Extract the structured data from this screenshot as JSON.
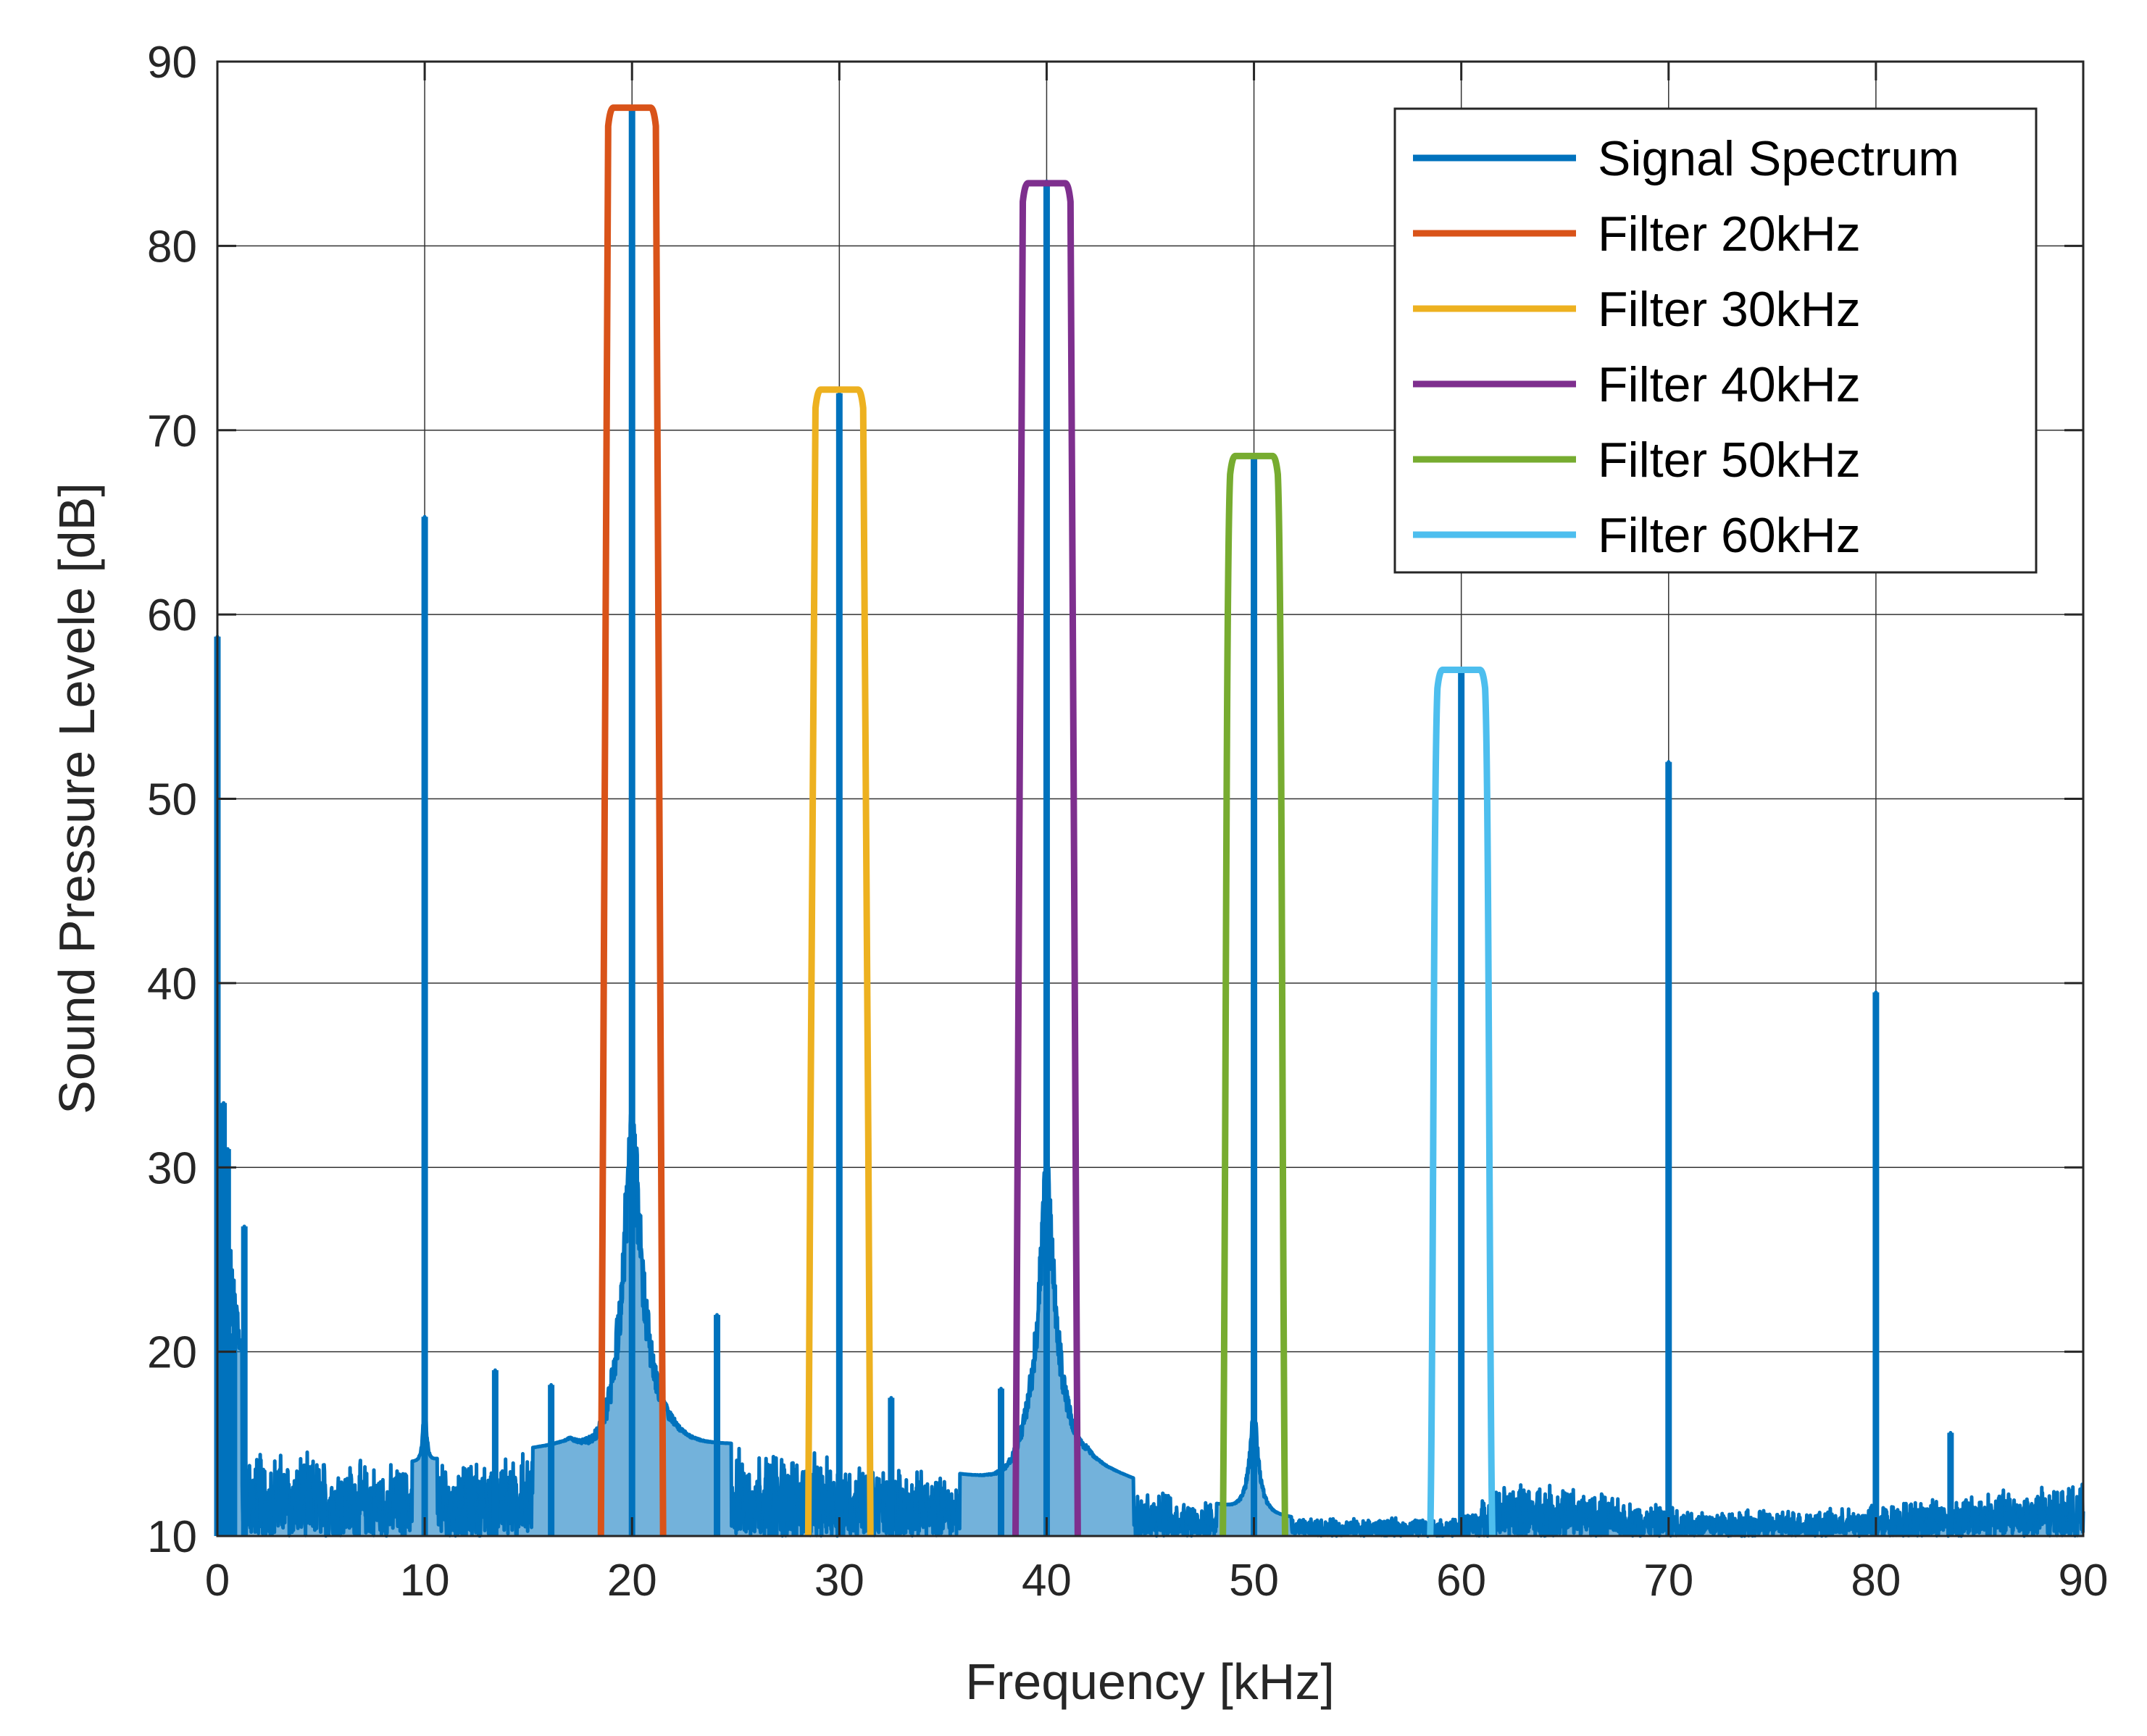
{
  "chart_data": {
    "type": "line",
    "title": "",
    "xlabel": "Frequency [kHz]",
    "ylabel": "Sound Pressure Levele [dB]",
    "xlim": [
      0,
      90
    ],
    "ylim": [
      10,
      90
    ],
    "xticks": [
      0,
      10,
      20,
      30,
      40,
      50,
      60,
      70,
      80,
      90
    ],
    "yticks": [
      10,
      20,
      30,
      40,
      50,
      60,
      70,
      80,
      90
    ],
    "grid": "partial",
    "legend_position": "top-right",
    "series": [
      {
        "name": "Signal Spectrum",
        "color": "#0072BD",
        "noise_floor": [
          [
            0,
            15
          ],
          [
            2,
            15
          ],
          [
            9,
            14
          ],
          [
            17,
            15
          ],
          [
            19,
            13
          ],
          [
            22,
            15
          ],
          [
            27,
            15
          ],
          [
            32,
            14
          ],
          [
            38,
            13
          ],
          [
            42,
            14
          ],
          [
            47,
            12
          ],
          [
            52,
            11
          ],
          [
            60,
            11
          ],
          [
            62,
            13
          ],
          [
            65,
            13
          ],
          [
            68,
            12
          ],
          [
            72,
            11.5
          ],
          [
            78,
            11.5
          ],
          [
            85,
            12.5
          ],
          [
            90,
            13
          ]
        ],
        "peaks": [
          {
            "x": 0,
            "y": 58.8
          },
          {
            "x": 0.3,
            "y": 33.5
          },
          {
            "x": 0.5,
            "y": 31
          },
          {
            "x": 0.8,
            "y": 21
          },
          {
            "x": 1.3,
            "y": 26.8
          },
          {
            "x": 10,
            "y": 65.3
          },
          {
            "x": 13.4,
            "y": 19
          },
          {
            "x": 16.1,
            "y": 18.2
          },
          {
            "x": 20,
            "y": 87.5
          },
          {
            "x": 24.1,
            "y": 22
          },
          {
            "x": 30,
            "y": 72
          },
          {
            "x": 32.5,
            "y": 17.5
          },
          {
            "x": 37.8,
            "y": 18
          },
          {
            "x": 40,
            "y": 83.5
          },
          {
            "x": 50,
            "y": 68.5
          },
          {
            "x": 60,
            "y": 57
          },
          {
            "x": 70,
            "y": 52
          },
          {
            "x": 80,
            "y": 39.5
          },
          {
            "x": 83.6,
            "y": 15.6
          }
        ]
      },
      {
        "name": "Filter 20kHz",
        "color": "#D95319",
        "center": 20,
        "half_width": 1.5,
        "level": 87.5
      },
      {
        "name": "Filter 30kHz",
        "color": "#EDB120",
        "center": 30,
        "half_width": 1.5,
        "level": 72.2
      },
      {
        "name": "Filter 40kHz",
        "color": "#7E2F8E",
        "center": 40,
        "half_width": 1.5,
        "level": 83.4
      },
      {
        "name": "Filter 50kHz",
        "color": "#77AC30",
        "center": 50,
        "half_width": 1.5,
        "level": 68.6
      },
      {
        "name": "Filter 60kHz",
        "color": "#4DBEEE",
        "center": 60,
        "half_width": 1.5,
        "level": 57.0
      }
    ]
  }
}
